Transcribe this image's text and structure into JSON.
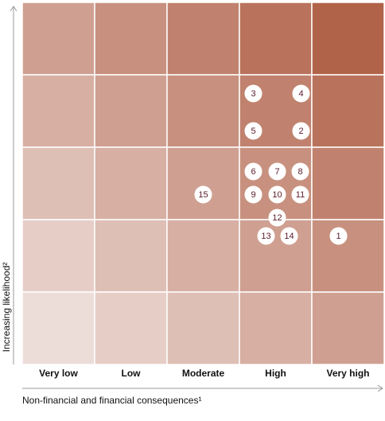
{
  "matrix": {
    "columns": [
      "Very low",
      "Low",
      "Moderate",
      "High",
      "Very high"
    ],
    "y_axis_label": "Increasing likelihood²",
    "x_axis_label": "Non-financial and financial consequences¹",
    "markers": [
      {
        "label": "3",
        "column": 3,
        "row": 1
      },
      {
        "label": "4",
        "column": 3,
        "row": 1
      },
      {
        "label": "5",
        "column": 3,
        "row": 1
      },
      {
        "label": "2",
        "column": 3,
        "row": 1
      },
      {
        "label": "6",
        "column": 3,
        "row": 2
      },
      {
        "label": "7",
        "column": 3,
        "row": 2
      },
      {
        "label": "8",
        "column": 3,
        "row": 2
      },
      {
        "label": "9",
        "column": 3,
        "row": 2
      },
      {
        "label": "10",
        "column": 3,
        "row": 2
      },
      {
        "label": "11",
        "column": 3,
        "row": 2
      },
      {
        "label": "12",
        "column": 3,
        "row": 2
      },
      {
        "label": "15",
        "column": 2,
        "row": 2
      },
      {
        "label": "13",
        "column": 3,
        "row": 3
      },
      {
        "label": "14",
        "column": 3,
        "row": 3
      },
      {
        "label": "1",
        "column": 4,
        "row": 3
      }
    ]
  }
}
